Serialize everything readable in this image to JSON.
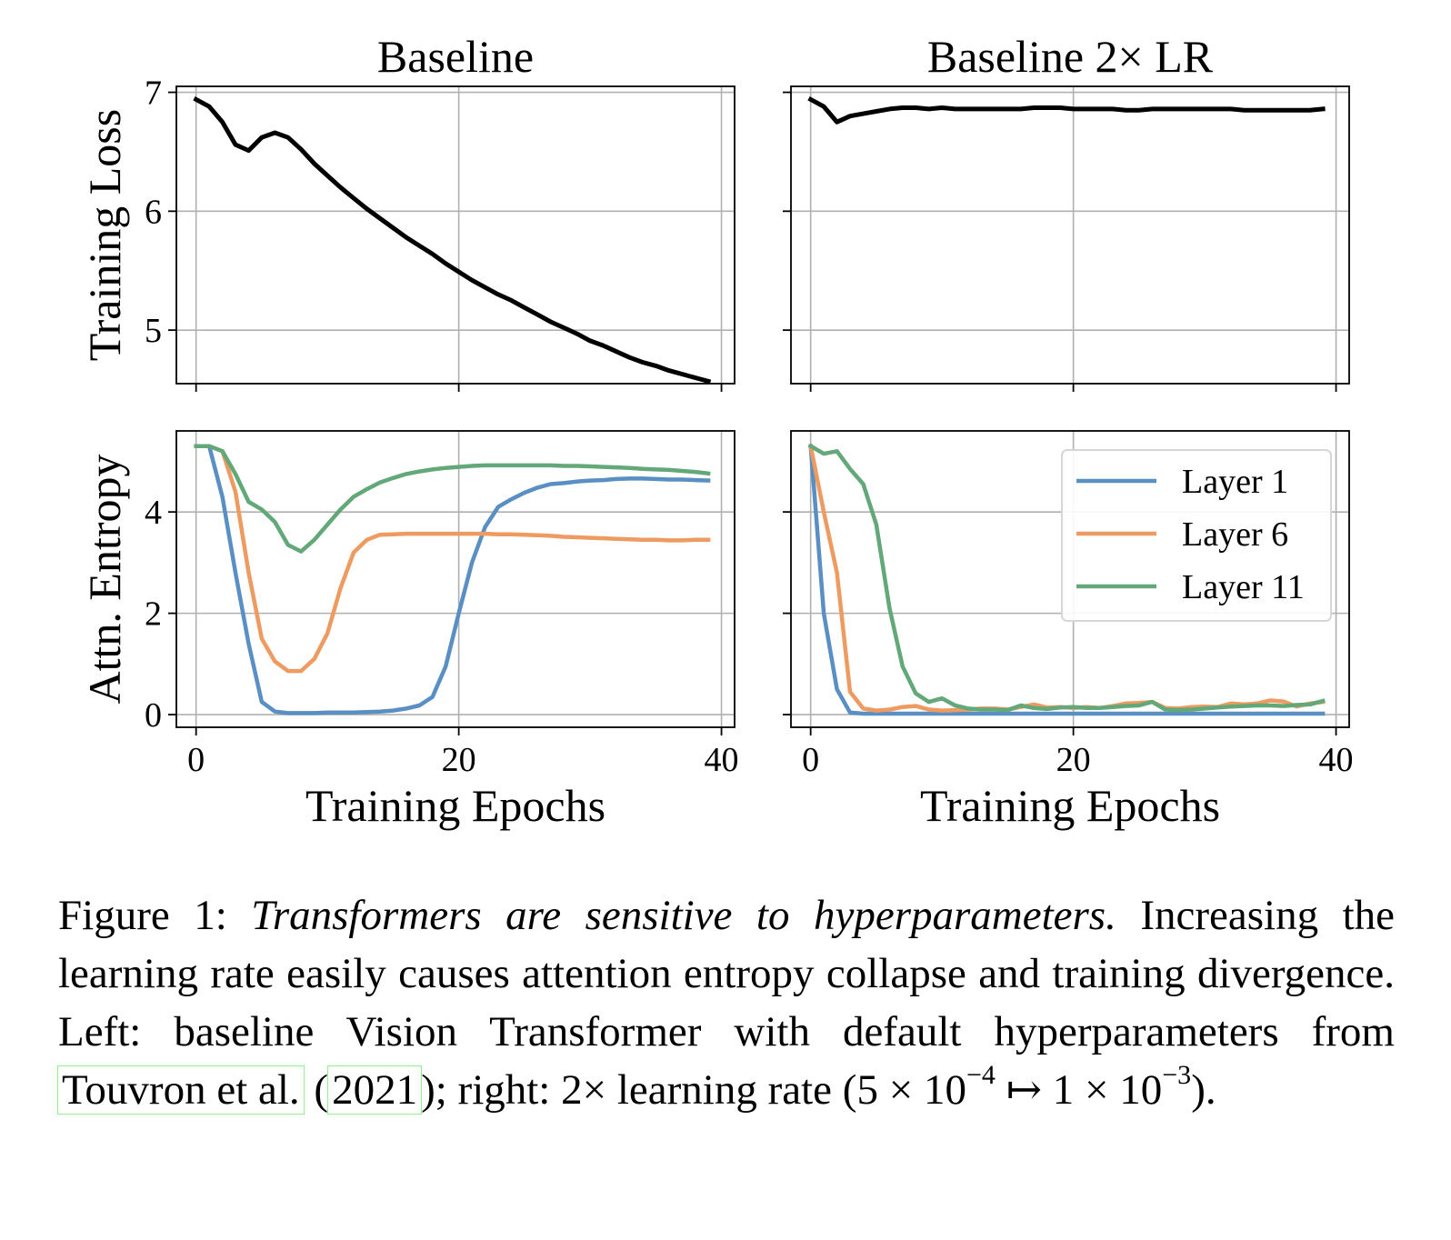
{
  "figure": {
    "panel_titles": [
      "Baseline",
      "Baseline 2× LR"
    ],
    "ylabels": [
      "Training Loss",
      "Attn. Entropy"
    ],
    "xlabel": "Training Epochs"
  },
  "chart_data": [
    {
      "type": "line",
      "title": "Baseline",
      "xlabel": "",
      "ylabel": "Training Loss",
      "xlim": [
        -1.5,
        41
      ],
      "ylim": [
        4.55,
        7.05
      ],
      "xticks": [
        0,
        20,
        40
      ],
      "yticks": [
        5,
        6,
        7
      ],
      "xtick_labels": [],
      "grid": true,
      "x": [
        0,
        1,
        2,
        3,
        4,
        5,
        6,
        7,
        8,
        9,
        10,
        11,
        12,
        13,
        14,
        15,
        16,
        17,
        18,
        19,
        20,
        21,
        22,
        23,
        24,
        25,
        26,
        27,
        28,
        29,
        30,
        31,
        32,
        33,
        34,
        35,
        36,
        37,
        38,
        39
      ],
      "series": [
        {
          "color": "#000000",
          "values": [
            6.94,
            6.88,
            6.75,
            6.56,
            6.51,
            6.62,
            6.66,
            6.62,
            6.52,
            6.4,
            6.3,
            6.2,
            6.11,
            6.02,
            5.94,
            5.86,
            5.78,
            5.71,
            5.64,
            5.56,
            5.49,
            5.42,
            5.36,
            5.3,
            5.25,
            5.19,
            5.13,
            5.07,
            5.02,
            4.97,
            4.91,
            4.87,
            4.82,
            4.77,
            4.73,
            4.7,
            4.66,
            4.63,
            4.6,
            4.57
          ]
        }
      ]
    },
    {
      "type": "line",
      "title": "Baseline 2× LR",
      "xlabel": "",
      "ylabel": "",
      "xlim": [
        -1.5,
        41
      ],
      "ylim": [
        4.55,
        7.05
      ],
      "xticks": [
        0,
        20,
        40
      ],
      "yticks": [
        5,
        6,
        7
      ],
      "xtick_labels": [],
      "ytick_labels": [],
      "grid": true,
      "x": [
        0,
        1,
        2,
        3,
        4,
        5,
        6,
        7,
        8,
        9,
        10,
        11,
        12,
        13,
        14,
        15,
        16,
        17,
        18,
        19,
        20,
        21,
        22,
        23,
        24,
        25,
        26,
        27,
        28,
        29,
        30,
        31,
        32,
        33,
        34,
        35,
        36,
        37,
        38,
        39
      ],
      "series": [
        {
          "color": "#000000",
          "values": [
            6.94,
            6.88,
            6.75,
            6.8,
            6.82,
            6.84,
            6.86,
            6.87,
            6.87,
            6.86,
            6.87,
            6.86,
            6.86,
            6.86,
            6.86,
            6.86,
            6.86,
            6.87,
            6.87,
            6.87,
            6.86,
            6.86,
            6.86,
            6.86,
            6.85,
            6.85,
            6.86,
            6.86,
            6.86,
            6.86,
            6.86,
            6.86,
            6.86,
            6.85,
            6.85,
            6.85,
            6.85,
            6.85,
            6.85,
            6.86
          ]
        }
      ]
    },
    {
      "type": "line",
      "title": "",
      "xlabel": "Training Epochs",
      "ylabel": "Attn. Entropy",
      "xlim": [
        -1.5,
        41
      ],
      "ylim": [
        -0.25,
        5.6
      ],
      "xticks": [
        0,
        20,
        40
      ],
      "yticks": [
        0,
        2,
        4
      ],
      "grid": true,
      "x": [
        0,
        1,
        2,
        3,
        4,
        5,
        6,
        7,
        8,
        9,
        10,
        11,
        12,
        13,
        14,
        15,
        16,
        17,
        18,
        19,
        20,
        21,
        22,
        23,
        24,
        25,
        26,
        27,
        28,
        29,
        30,
        31,
        32,
        33,
        34,
        35,
        36,
        37,
        38,
        39
      ],
      "series": [
        {
          "name": "Layer 1",
          "color": "#5a8fc4",
          "values": [
            5.3,
            5.3,
            4.3,
            2.8,
            1.4,
            0.25,
            0.06,
            0.03,
            0.03,
            0.03,
            0.04,
            0.04,
            0.04,
            0.05,
            0.06,
            0.08,
            0.12,
            0.18,
            0.35,
            0.95,
            2.0,
            3.0,
            3.7,
            4.1,
            4.25,
            4.38,
            4.48,
            4.55,
            4.57,
            4.6,
            4.62,
            4.63,
            4.65,
            4.66,
            4.66,
            4.65,
            4.64,
            4.64,
            4.63,
            4.62
          ]
        },
        {
          "name": "Layer 6",
          "color": "#ee9b62",
          "values": [
            5.3,
            5.3,
            5.2,
            4.4,
            2.8,
            1.5,
            1.05,
            0.86,
            0.86,
            1.1,
            1.6,
            2.5,
            3.2,
            3.45,
            3.55,
            3.56,
            3.57,
            3.57,
            3.57,
            3.57,
            3.57,
            3.57,
            3.57,
            3.56,
            3.56,
            3.55,
            3.54,
            3.53,
            3.51,
            3.5,
            3.49,
            3.48,
            3.47,
            3.46,
            3.45,
            3.45,
            3.44,
            3.44,
            3.45,
            3.45
          ]
        },
        {
          "name": "Layer 11",
          "color": "#62a878",
          "values": [
            5.3,
            5.3,
            5.2,
            4.75,
            4.2,
            4.05,
            3.8,
            3.35,
            3.22,
            3.45,
            3.75,
            4.05,
            4.3,
            4.45,
            4.58,
            4.67,
            4.75,
            4.8,
            4.84,
            4.87,
            4.89,
            4.91,
            4.92,
            4.92,
            4.92,
            4.92,
            4.92,
            4.92,
            4.91,
            4.91,
            4.9,
            4.89,
            4.88,
            4.87,
            4.85,
            4.84,
            4.83,
            4.81,
            4.79,
            4.76
          ]
        }
      ]
    },
    {
      "type": "line",
      "title": "",
      "xlabel": "Training Epochs",
      "ylabel": "",
      "xlim": [
        -1.5,
        41
      ],
      "ylim": [
        -0.25,
        5.6
      ],
      "xticks": [
        0,
        20,
        40
      ],
      "yticks": [
        0,
        2,
        4
      ],
      "ytick_labels": [],
      "grid": true,
      "legend": "top-right",
      "x": [
        0,
        1,
        2,
        3,
        4,
        5,
        6,
        7,
        8,
        9,
        10,
        11,
        12,
        13,
        14,
        15,
        16,
        17,
        18,
        19,
        20,
        21,
        22,
        23,
        24,
        25,
        26,
        27,
        28,
        29,
        30,
        31,
        32,
        33,
        34,
        35,
        36,
        37,
        38,
        39
      ],
      "series": [
        {
          "name": "Layer 1",
          "color": "#5a8fc4",
          "values": [
            5.3,
            2.0,
            0.5,
            0.04,
            0.02,
            0.02,
            0.02,
            0.02,
            0.02,
            0.02,
            0.02,
            0.02,
            0.02,
            0.02,
            0.02,
            0.02,
            0.02,
            0.02,
            0.02,
            0.02,
            0.02,
            0.02,
            0.02,
            0.02,
            0.02,
            0.02,
            0.02,
            0.02,
            0.02,
            0.02,
            0.02,
            0.02,
            0.02,
            0.02,
            0.02,
            0.02,
            0.02,
            0.02,
            0.02,
            0.02
          ]
        },
        {
          "name": "Layer 6",
          "color": "#ee9b62",
          "values": [
            5.3,
            4.0,
            2.8,
            0.45,
            0.12,
            0.08,
            0.1,
            0.15,
            0.17,
            0.1,
            0.08,
            0.09,
            0.1,
            0.12,
            0.12,
            0.1,
            0.15,
            0.2,
            0.14,
            0.15,
            0.13,
            0.15,
            0.13,
            0.17,
            0.22,
            0.23,
            0.25,
            0.13,
            0.12,
            0.15,
            0.16,
            0.15,
            0.22,
            0.2,
            0.22,
            0.28,
            0.26,
            0.16,
            0.22,
            0.25
          ]
        },
        {
          "name": "Layer 11",
          "color": "#62a878",
          "values": [
            5.3,
            5.15,
            5.2,
            4.85,
            4.55,
            3.75,
            2.1,
            0.95,
            0.42,
            0.25,
            0.32,
            0.18,
            0.12,
            0.1,
            0.1,
            0.09,
            0.18,
            0.13,
            0.11,
            0.14,
            0.15,
            0.13,
            0.13,
            0.15,
            0.17,
            0.18,
            0.25,
            0.1,
            0.09,
            0.1,
            0.12,
            0.14,
            0.16,
            0.17,
            0.18,
            0.18,
            0.17,
            0.19,
            0.2,
            0.27
          ]
        }
      ]
    }
  ],
  "caption": {
    "label": "Figure 1:",
    "italic": "Transformers are sensitive to hyperparameters.",
    "text1": "Increasing the learning rate easily causes attention entropy collapse and training divergence. Left: baseline Vision Transformer with default hyperparameters from",
    "cite_authors": "Touvron et al.",
    "cite_paren_open": "(",
    "cite_year": "2021",
    "cite_paren_close": ")",
    "text2": "; right: 2× learning rate (5 × 10",
    "exp1": "−4",
    "arrow": " ↦ 1 × 10",
    "exp2": "−3",
    "text3": ")."
  }
}
